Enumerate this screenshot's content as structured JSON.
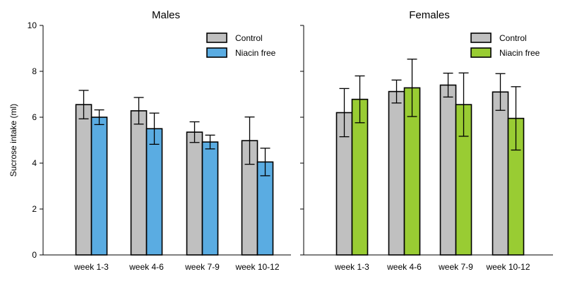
{
  "chart_data": [
    {
      "type": "bar",
      "title": "Males",
      "ylabel": "Sucrose intake (ml)",
      "ylim": [
        0,
        10
      ],
      "yticks": [
        0,
        2,
        4,
        6,
        8,
        10
      ],
      "categories": [
        "week 1-3",
        "week 4-6",
        "week 7-9",
        "week 10-12"
      ],
      "legend_position": "top-right",
      "series": [
        {
          "name": "Control",
          "color": "#c0c0c0",
          "values": [
            6.55,
            6.28,
            5.35,
            4.98
          ],
          "errors": [
            0.62,
            0.58,
            0.45,
            1.03
          ]
        },
        {
          "name": "Niacin free",
          "color": "#5aace2",
          "values": [
            6.0,
            5.5,
            4.92,
            4.05
          ],
          "errors": [
            0.32,
            0.68,
            0.3,
            0.6
          ]
        }
      ]
    },
    {
      "type": "bar",
      "title": "Females",
      "ylabel": "",
      "ylim": [
        0,
        10
      ],
      "yticks": [
        0,
        2,
        4,
        6,
        8,
        10
      ],
      "categories": [
        "week 1-3",
        "week 4-6",
        "week 7-9",
        "week 10-12"
      ],
      "legend_position": "top-right",
      "series": [
        {
          "name": "Control",
          "color": "#c0c0c0",
          "values": [
            6.2,
            7.12,
            7.4,
            7.1
          ],
          "errors": [
            1.05,
            0.5,
            0.52,
            0.8
          ]
        },
        {
          "name": "Niacin free",
          "color": "#99cc33",
          "values": [
            6.78,
            7.28,
            6.55,
            5.95
          ],
          "errors": [
            1.02,
            1.25,
            1.38,
            1.38
          ]
        }
      ]
    }
  ]
}
